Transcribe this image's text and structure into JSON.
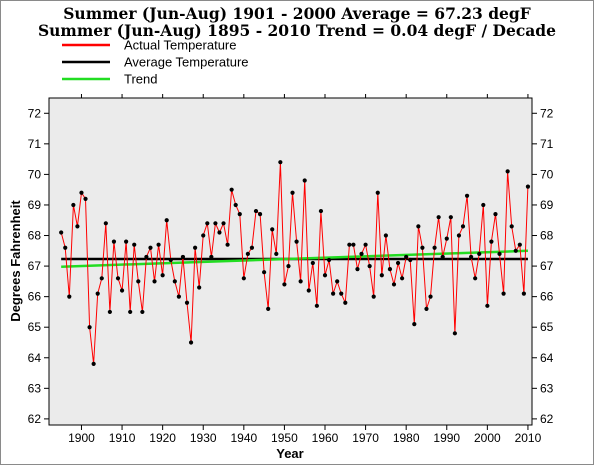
{
  "chart_data": {
    "type": "line",
    "title": "Summer (Jun-Aug) 1901 - 2000 Average = 67.23 degF",
    "subtitle": "Summer (Jun-Aug) 1895 - 2010 Trend = 0.04 degF / Decade",
    "xlabel": "Year",
    "ylabel": "Degrees Fahrenheit",
    "xlim": [
      1892,
      2011
    ],
    "ylim": [
      61.8,
      72.5
    ],
    "xticks": [
      1900,
      1910,
      1920,
      1930,
      1940,
      1950,
      1960,
      1970,
      1980,
      1990,
      2000,
      2010
    ],
    "yticks": [
      62,
      63,
      64,
      65,
      66,
      67,
      68,
      69,
      70,
      71,
      72
    ],
    "grid": false,
    "background": "#ebebeb",
    "legend_position": "top-left",
    "legend": [
      "Actual Temperature",
      "Average Temperature",
      "Trend"
    ],
    "colors": {
      "actual": "#ff0000",
      "points": "#000000",
      "average": "#000000",
      "trend": "#22dd22"
    },
    "average_value": 67.23,
    "trend_endpoints": [
      [
        1895,
        66.98
      ],
      [
        2010,
        67.5
      ]
    ],
    "x": [
      1895,
      1896,
      1897,
      1898,
      1899,
      1900,
      1901,
      1902,
      1903,
      1904,
      1905,
      1906,
      1907,
      1908,
      1909,
      1910,
      1911,
      1912,
      1913,
      1914,
      1915,
      1916,
      1917,
      1918,
      1919,
      1920,
      1921,
      1922,
      1923,
      1924,
      1925,
      1926,
      1927,
      1928,
      1929,
      1930,
      1931,
      1932,
      1933,
      1934,
      1935,
      1936,
      1937,
      1938,
      1939,
      1940,
      1941,
      1942,
      1943,
      1944,
      1945,
      1946,
      1947,
      1948,
      1949,
      1950,
      1951,
      1952,
      1953,
      1954,
      1955,
      1956,
      1957,
      1958,
      1959,
      1960,
      1961,
      1962,
      1963,
      1964,
      1965,
      1966,
      1967,
      1968,
      1969,
      1970,
      1971,
      1972,
      1973,
      1974,
      1975,
      1976,
      1977,
      1978,
      1979,
      1980,
      1981,
      1982,
      1983,
      1984,
      1985,
      1986,
      1987,
      1988,
      1989,
      1990,
      1991,
      1992,
      1993,
      1994,
      1995,
      1996,
      1997,
      1998,
      1999,
      2000,
      2001,
      2002,
      2003,
      2004,
      2005,
      2006,
      2007,
      2008,
      2009,
      2010
    ],
    "values": [
      68.1,
      67.6,
      66.0,
      69.0,
      68.3,
      69.4,
      69.2,
      65.0,
      63.8,
      66.1,
      66.6,
      68.4,
      65.5,
      67.8,
      66.6,
      66.2,
      67.8,
      65.5,
      67.7,
      66.5,
      65.5,
      67.3,
      67.6,
      66.5,
      67.7,
      66.7,
      68.5,
      67.2,
      66.5,
      66.0,
      67.3,
      65.8,
      64.5,
      67.6,
      66.3,
      68.0,
      68.4,
      67.3,
      68.4,
      68.1,
      68.4,
      67.7,
      69.5,
      69.0,
      68.7,
      66.6,
      67.4,
      67.6,
      68.8,
      68.7,
      66.8,
      65.6,
      68.2,
      67.4,
      70.4,
      66.4,
      67.0,
      69.4,
      67.8,
      66.5,
      69.8,
      66.2,
      67.1,
      65.7,
      68.8,
      66.7,
      67.2,
      66.1,
      66.5,
      66.1,
      65.8,
      67.7,
      67.7,
      66.9,
      67.4,
      67.7,
      67.0,
      66.0,
      69.4,
      66.7,
      68.0,
      66.9,
      66.4,
      67.1,
      66.6,
      67.3,
      67.2,
      65.1,
      68.3,
      67.6,
      65.6,
      66.0,
      67.6,
      68.6,
      67.3,
      67.9,
      68.6,
      64.8,
      68.0,
      68.3,
      69.3,
      67.3,
      66.6,
      67.4,
      69.0,
      65.7,
      67.8,
      68.7,
      67.4,
      66.1,
      70.1,
      68.3,
      67.5,
      67.7,
      66.1,
      69.6
    ]
  }
}
